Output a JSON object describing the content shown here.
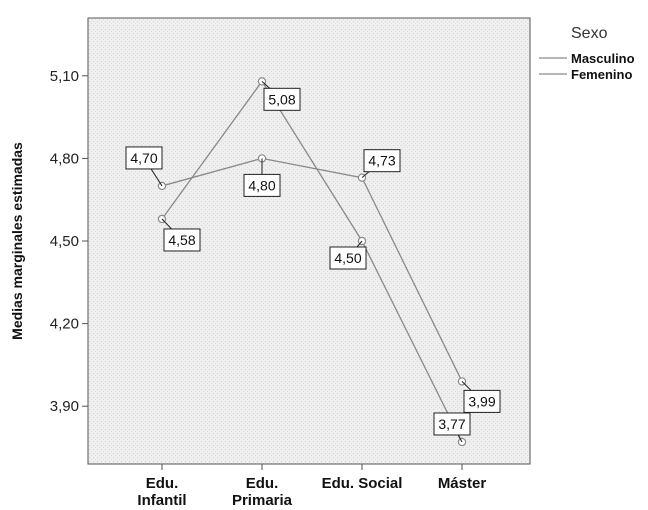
{
  "chart_data": {
    "type": "line",
    "title": "",
    "xlabel": "",
    "ylabel": "Medias marginales estimadas",
    "categories": [
      [
        "Edu.",
        "Infantil"
      ],
      [
        "Edu.",
        "Primaria"
      ],
      [
        "Edu. Social"
      ],
      [
        "Máster"
      ]
    ],
    "ylim": [
      3.69,
      5.31
    ],
    "yticks": [
      3.9,
      4.2,
      4.5,
      4.8,
      5.1
    ],
    "ytick_labels": [
      "3,90",
      "4,20",
      "4,50",
      "4,80",
      "5,10"
    ],
    "grid": false,
    "legend": {
      "title": "Sexo",
      "position": "right"
    },
    "series": [
      {
        "name": "Masculino",
        "values": [
          4.58,
          5.08,
          4.5,
          3.77
        ],
        "labels": [
          "4,58",
          "5,08",
          "4,50",
          "3,77"
        ]
      },
      {
        "name": "Femenino",
        "values": [
          4.7,
          4.8,
          4.73,
          3.99
        ],
        "labels": [
          "4,70",
          "4,80",
          "4,73",
          "3,99"
        ]
      }
    ],
    "colors": {
      "plot_background": "#efefef",
      "line": "#8a8a8a",
      "frame": "#555555",
      "label_box": "#ffffff"
    }
  }
}
